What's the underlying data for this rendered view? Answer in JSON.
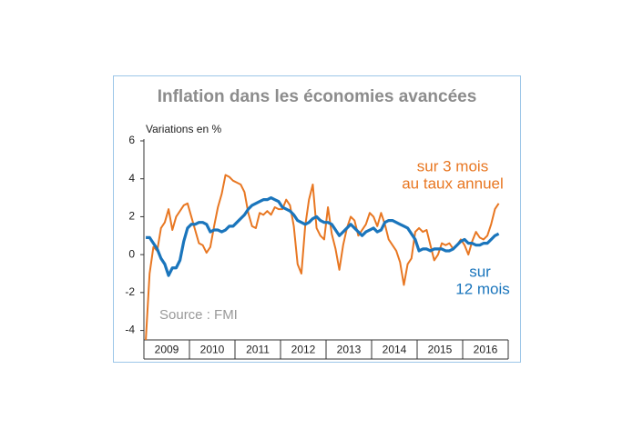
{
  "chart_data": {
    "type": "line",
    "title": "Inflation dans les économies avancées",
    "y_label": "Variations en %",
    "source": "Source : FMI",
    "categories": [
      null,
      null,
      null,
      null,
      null,
      null,
      "2009",
      null,
      null,
      null,
      null,
      null,
      null,
      null,
      null,
      null,
      null,
      null,
      "2010",
      null,
      null,
      null,
      null,
      null,
      null,
      null,
      null,
      null,
      null,
      null,
      "2011",
      null,
      null,
      null,
      null,
      null,
      null,
      null,
      null,
      null,
      null,
      null,
      "2012",
      null,
      null,
      null,
      null,
      null,
      null,
      null,
      null,
      null,
      null,
      null,
      "2013",
      null,
      null,
      null,
      null,
      null,
      null,
      null,
      null,
      null,
      null,
      null,
      "2014",
      null,
      null,
      null,
      null,
      null,
      null,
      null,
      null,
      null,
      null,
      null,
      "2015",
      null,
      null,
      null,
      null,
      null,
      null,
      null,
      null,
      null,
      null,
      null,
      "2016",
      null,
      null,
      null,
      null,
      null
    ],
    "series": [
      {
        "label_lines": [
          "sur 3 mois",
          "au taux annuel"
        ],
        "color": "#e87722",
        "width": 2,
        "values": [
          -4.5,
          -1.0,
          0.4,
          0.2,
          1.4,
          1.7,
          2.4,
          1.3,
          2.0,
          2.3,
          2.6,
          2.7,
          2.0,
          1.3,
          0.6,
          0.5,
          0.1,
          0.4,
          1.5,
          2.5,
          3.2,
          4.2,
          4.1,
          3.9,
          3.8,
          3.7,
          3.3,
          2.2,
          1.5,
          1.4,
          2.2,
          2.1,
          2.3,
          2.1,
          2.5,
          2.4,
          2.4,
          2.9,
          2.6,
          1.5,
          -0.5,
          -1.0,
          1.5,
          2.9,
          3.7,
          1.4,
          1.0,
          0.8,
          2.5,
          1.1,
          0.3,
          -0.8,
          0.5,
          1.4,
          2.0,
          1.8,
          1.0,
          1.3,
          1.6,
          2.2,
          2.0,
          1.5,
          2.2,
          1.6,
          0.8,
          0.5,
          0.2,
          -0.4,
          -1.6,
          -0.5,
          -0.2,
          1.2,
          1.4,
          1.2,
          1.3,
          0.5,
          -0.3,
          0.0,
          0.6,
          0.5,
          0.6,
          0.3,
          0.5,
          0.8,
          0.5,
          0.0,
          0.7,
          1.2,
          0.9,
          0.8,
          1.0,
          1.6,
          2.4,
          2.7,
          null,
          null
        ]
      },
      {
        "label_lines": [
          "sur",
          "12 mois"
        ],
        "color": "#1a75bc",
        "width": 3.2,
        "values": [
          0.9,
          0.9,
          0.6,
          0.3,
          -0.2,
          -0.5,
          -1.1,
          -0.7,
          -0.7,
          -0.3,
          0.7,
          1.4,
          1.6,
          1.6,
          1.7,
          1.7,
          1.6,
          1.2,
          1.3,
          1.3,
          1.2,
          1.3,
          1.5,
          1.5,
          1.7,
          1.9,
          2.1,
          2.4,
          2.6,
          2.7,
          2.8,
          2.9,
          2.9,
          3.0,
          2.9,
          2.8,
          2.5,
          2.4,
          2.3,
          2.1,
          1.8,
          1.7,
          1.6,
          1.7,
          1.9,
          2.0,
          1.8,
          1.7,
          1.7,
          1.6,
          1.3,
          1.0,
          1.2,
          1.4,
          1.6,
          1.4,
          1.2,
          1.0,
          1.2,
          1.3,
          1.4,
          1.2,
          1.3,
          1.7,
          1.8,
          1.8,
          1.7,
          1.6,
          1.5,
          1.4,
          1.1,
          0.8,
          0.2,
          0.3,
          0.3,
          0.2,
          0.3,
          0.3,
          0.3,
          0.2,
          0.2,
          0.3,
          0.5,
          0.7,
          0.8,
          0.6,
          0.6,
          0.5,
          0.5,
          0.6,
          0.6,
          0.8,
          1.0,
          1.1,
          null,
          null
        ]
      }
    ],
    "ylim": [
      -4.5,
      6
    ],
    "yticks": [
      -4,
      -2,
      0,
      2,
      4,
      6
    ],
    "grid": false
  }
}
